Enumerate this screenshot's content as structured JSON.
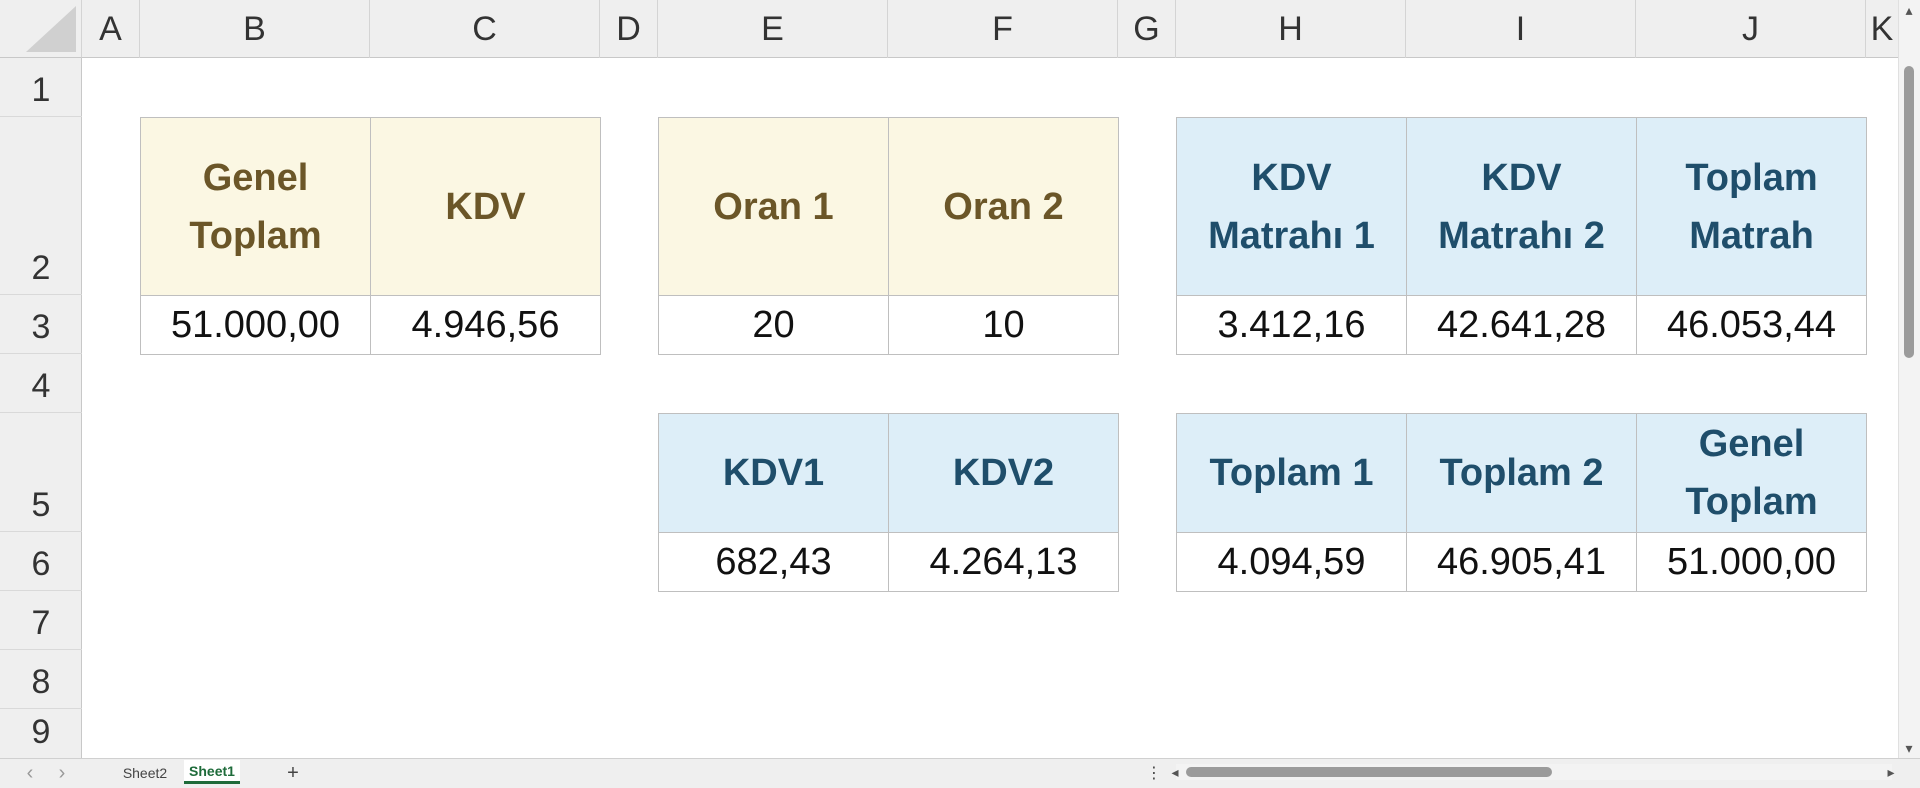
{
  "columns": [
    "A",
    "B",
    "C",
    "D",
    "E",
    "F",
    "G",
    "H",
    "I",
    "J",
    "K"
  ],
  "rows": [
    "1",
    "2",
    "3",
    "4",
    "5",
    "6",
    "7",
    "8",
    "9"
  ],
  "tables": {
    "t1": {
      "headers": [
        "Genel\nToplam",
        "KDV"
      ],
      "values": [
        "51.000,00",
        "4.946,56"
      ]
    },
    "t2": {
      "headers": [
        "Oran 1",
        "Oran 2"
      ],
      "values": [
        "20",
        "10"
      ]
    },
    "t3": {
      "headers": [
        "KDV\nMatrahı 1",
        "KDV\nMatrahı 2",
        "Toplam\nMatrah"
      ],
      "values": [
        "3.412,16",
        "42.641,28",
        "46.053,44"
      ]
    },
    "t4": {
      "headers": [
        "KDV1",
        "KDV2"
      ],
      "values": [
        "682,43",
        "4.264,13"
      ]
    },
    "t5": {
      "headers": [
        "Toplam 1",
        "Toplam 2",
        "Genel\nToplam"
      ],
      "values": [
        "4.094,59",
        "46.905,41",
        "51.000,00"
      ]
    }
  },
  "sheet_tabs": [
    "Sheet2",
    "Sheet1"
  ],
  "active_tab": "Sheet1",
  "add_sheet_label": "+",
  "nav_prev": "‹",
  "nav_next": "›",
  "more_label": "⋮",
  "colors": {
    "header_yellow": "#fbf7e3",
    "header_blue": "#ddeef8",
    "text_brown": "#6b5628",
    "text_navy": "#1f4e6b"
  }
}
